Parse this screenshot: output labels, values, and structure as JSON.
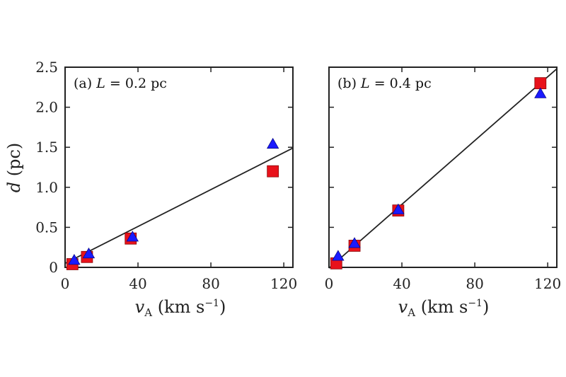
{
  "chart_data": [
    {
      "type": "scatter",
      "panel_label": "(a)",
      "panel_param": "L = 0.2 pc",
      "xlabel": "v_A (km s^-1)",
      "ylabel": "d (pc)",
      "xlim": [
        0,
        120
      ],
      "ylim": [
        0,
        2.5
      ],
      "xticks": [
        "0",
        "40",
        "80",
        "120"
      ],
      "yticks": [
        "0",
        "0.5",
        "1.0",
        "1.5",
        "2.0",
        "2.5"
      ],
      "series": [
        {
          "marker": "square",
          "color": "#e8121b",
          "x": [
            4,
            12,
            36,
            114
          ],
          "y": [
            0.04,
            0.13,
            0.36,
            1.2
          ]
        },
        {
          "marker": "triangle",
          "color": "#1a1aff",
          "x": [
            5,
            13,
            37,
            114
          ],
          "y": [
            0.09,
            0.17,
            0.38,
            1.54
          ]
        }
      ],
      "fit_line": {
        "x": [
          0,
          125
        ],
        "y": [
          0.05,
          1.49
        ]
      }
    },
    {
      "type": "scatter",
      "panel_label": "(b)",
      "panel_param": "L = 0.4 pc",
      "xlabel": "v_A (km s^-1)",
      "ylabel": "",
      "xlim": [
        0,
        120
      ],
      "ylim": [
        0,
        2.5
      ],
      "xticks": [
        "0",
        "40",
        "80",
        "120"
      ],
      "yticks": [],
      "series": [
        {
          "marker": "square",
          "color": "#e8121b",
          "x": [
            4,
            14,
            38,
            116
          ],
          "y": [
            0.05,
            0.27,
            0.71,
            2.3
          ]
        },
        {
          "marker": "triangle",
          "color": "#1a1aff",
          "x": [
            5,
            14,
            38,
            116
          ],
          "y": [
            0.14,
            0.3,
            0.72,
            2.17
          ]
        }
      ],
      "fit_line": {
        "x": [
          0,
          125
        ],
        "y": [
          -0.01,
          2.48
        ]
      }
    }
  ]
}
